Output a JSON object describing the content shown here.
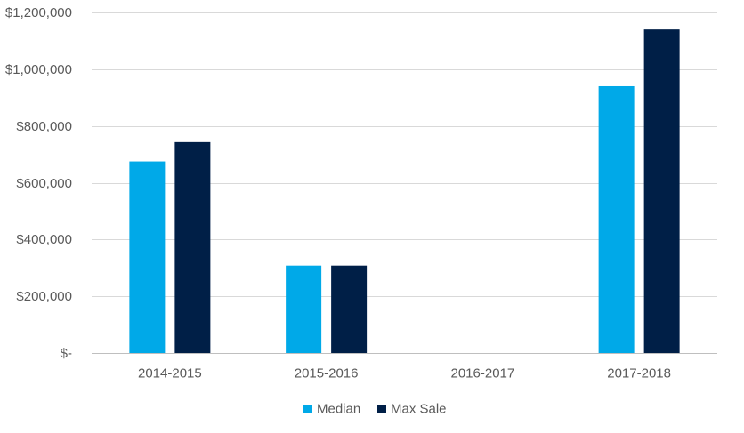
{
  "chart_data": {
    "type": "bar",
    "title": "",
    "xlabel": "",
    "ylabel": "",
    "categories": [
      "2014-2015",
      "2015-2016",
      "2016-2017",
      "2017-2018"
    ],
    "series": [
      {
        "name": "Median",
        "color": "#00a9e8",
        "values": [
          675000,
          308000,
          0,
          940000
        ]
      },
      {
        "name": "Max Sale",
        "color": "#001f47",
        "values": [
          743000,
          308000,
          0,
          1140000
        ]
      }
    ],
    "ylim": [
      0,
      1200000
    ],
    "yticks": [
      {
        "value": 0,
        "label": "$-"
      },
      {
        "value": 200000,
        "label": "$200,000"
      },
      {
        "value": 400000,
        "label": "$400,000"
      },
      {
        "value": 600000,
        "label": "$600,000"
      },
      {
        "value": 800000,
        "label": "$800,000"
      },
      {
        "value": 1000000,
        "label": "$1,000,000"
      },
      {
        "value": 1200000,
        "label": "$1,200,000"
      }
    ],
    "grid": true,
    "legend_position": "bottom",
    "grid_color": "#d9d9d9",
    "axis_color": "#bfbfbf",
    "text_color": "#595959"
  }
}
